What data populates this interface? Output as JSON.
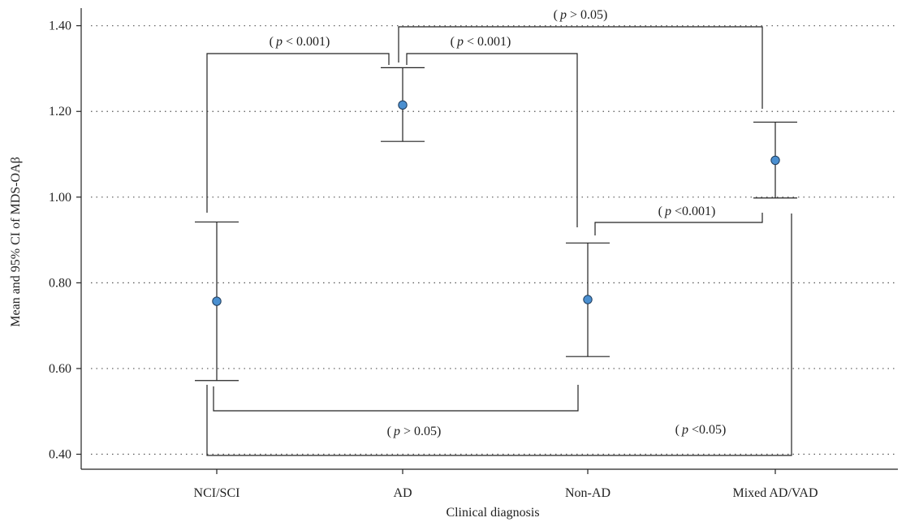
{
  "chart_data": {
    "type": "scatter",
    "xlabel": "Clinical diagnosis",
    "ylabel": "Mean and 95% CI of MDS-OAβ",
    "categories": [
      "NCI/SCI",
      "AD",
      "Non-AD",
      "Mixed AD/VAD"
    ],
    "y_ticks": [
      "0.40",
      "0.60",
      "0.80",
      "1.00",
      "1.20",
      "1.40"
    ],
    "ylim": [
      0.365,
      1.46
    ],
    "grid": "horizontal-dotted",
    "points": [
      {
        "category": "NCI/SCI",
        "mean": 0.757,
        "ci_low": 0.572,
        "ci_high": 0.942
      },
      {
        "category": "AD",
        "mean": 1.215,
        "ci_low": 1.13,
        "ci_high": 1.302
      },
      {
        "category": "Non-AD",
        "mean": 0.761,
        "ci_low": 0.628,
        "ci_high": 0.893
      },
      {
        "category": "Mixed AD/VAD",
        "mean": 1.086,
        "ci_low": 0.998,
        "ci_high": 1.175
      }
    ],
    "point_color": "#4a8fd0",
    "comparisons": [
      {
        "from": "NCI/SCI",
        "to": "AD",
        "label_open": "(",
        "label_p": "p",
        "label_rest": " < 0.001)",
        "position": "above"
      },
      {
        "from": "AD",
        "to": "Non-AD",
        "label_open": "(",
        "label_p": "p",
        "label_rest": " < 0.001)",
        "position": "above"
      },
      {
        "from": "AD",
        "to": "Mixed AD/VAD",
        "label_open": "(",
        "label_p": "p",
        "label_rest": " > 0.05)",
        "position": "above"
      },
      {
        "from": "Non-AD",
        "to": "Mixed AD/VAD",
        "label_open": "(",
        "label_p": "p",
        "label_rest": " <0.001)",
        "position": "above"
      },
      {
        "from": "NCI/SCI",
        "to": "Non-AD",
        "label_open": "(",
        "label_p": "p",
        "label_rest": " > 0.05)",
        "position": "below"
      },
      {
        "from": "NCI/SCI",
        "to": "Mixed AD/VAD",
        "label_open": "(",
        "label_p": "p",
        "label_rest": " <0.05)",
        "position": "below"
      }
    ]
  }
}
